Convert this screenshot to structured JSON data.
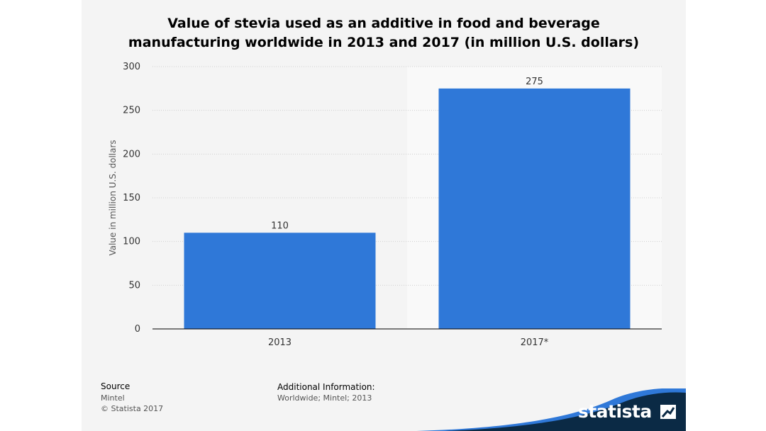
{
  "chart_data": {
    "type": "bar",
    "title_line1": "Value of stevia used as an additive in food and beverage",
    "title_line2": "manufacturing worldwide in 2013 and 2017 (in million U.S. dollars)",
    "categories": [
      "2013",
      "2017*"
    ],
    "values": [
      110,
      275
    ],
    "data_labels": [
      "110",
      "275"
    ],
    "ylabel": "Value in million U.S. dollars",
    "ylim": [
      0,
      300
    ],
    "yticks": [
      0,
      50,
      100,
      150,
      200,
      250,
      300
    ],
    "bar_color": "#2f78d8",
    "forecast_shading": true
  },
  "footer": {
    "source_heading": "Source",
    "source_name": "Mintel",
    "copyright": "© Statista 2017",
    "additional_heading": "Additional Information:",
    "additional_text": "Worldwide; Mintel; 2013"
  },
  "brand": {
    "name": "statista",
    "dark_color": "#0b2a45",
    "accent_color": "#2f78d8"
  }
}
